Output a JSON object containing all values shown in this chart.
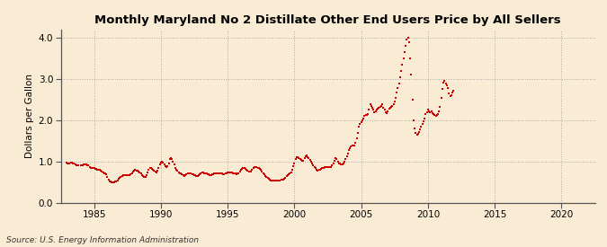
{
  "title": "Monthly Maryland No 2 Distillate Other End Users Price by All Sellers",
  "ylabel": "Dollars per Gallon",
  "source": "Source: U.S. Energy Information Administration",
  "background_color": "#faecd4",
  "plot_bg_color": "#faecd4",
  "line_color": "#cc0000",
  "xlim": [
    1982.5,
    2022.5
  ],
  "ylim": [
    0.0,
    4.2
  ],
  "xticks": [
    1985,
    1990,
    1995,
    2000,
    2005,
    2010,
    2015,
    2020
  ],
  "yticks": [
    0.0,
    1.0,
    2.0,
    3.0,
    4.0
  ],
  "data": [
    [
      1982.917,
      0.97
    ],
    [
      1983.0,
      0.96
    ],
    [
      1983.083,
      0.95
    ],
    [
      1983.167,
      0.96
    ],
    [
      1983.25,
      0.97
    ],
    [
      1983.333,
      0.97
    ],
    [
      1983.417,
      0.96
    ],
    [
      1983.5,
      0.95
    ],
    [
      1983.583,
      0.93
    ],
    [
      1983.667,
      0.91
    ],
    [
      1983.75,
      0.91
    ],
    [
      1983.833,
      0.9
    ],
    [
      1984.0,
      0.9
    ],
    [
      1984.083,
      0.9
    ],
    [
      1984.167,
      0.91
    ],
    [
      1984.25,
      0.92
    ],
    [
      1984.333,
      0.93
    ],
    [
      1984.417,
      0.92
    ],
    [
      1984.5,
      0.91
    ],
    [
      1984.583,
      0.9
    ],
    [
      1984.667,
      0.87
    ],
    [
      1984.75,
      0.85
    ],
    [
      1984.833,
      0.84
    ],
    [
      1984.917,
      0.84
    ],
    [
      1985.0,
      0.83
    ],
    [
      1985.083,
      0.82
    ],
    [
      1985.167,
      0.81
    ],
    [
      1985.25,
      0.8
    ],
    [
      1985.333,
      0.8
    ],
    [
      1985.417,
      0.79
    ],
    [
      1985.5,
      0.78
    ],
    [
      1985.583,
      0.76
    ],
    [
      1985.667,
      0.74
    ],
    [
      1985.75,
      0.72
    ],
    [
      1985.833,
      0.7
    ],
    [
      1985.917,
      0.68
    ],
    [
      1986.0,
      0.62
    ],
    [
      1986.083,
      0.55
    ],
    [
      1986.167,
      0.52
    ],
    [
      1986.25,
      0.51
    ],
    [
      1986.333,
      0.5
    ],
    [
      1986.417,
      0.5
    ],
    [
      1986.5,
      0.5
    ],
    [
      1986.583,
      0.51
    ],
    [
      1986.667,
      0.52
    ],
    [
      1986.75,
      0.54
    ],
    [
      1986.833,
      0.57
    ],
    [
      1986.917,
      0.6
    ],
    [
      1987.0,
      0.63
    ],
    [
      1987.083,
      0.65
    ],
    [
      1987.167,
      0.66
    ],
    [
      1987.25,
      0.67
    ],
    [
      1987.333,
      0.67
    ],
    [
      1987.417,
      0.67
    ],
    [
      1987.5,
      0.67
    ],
    [
      1987.583,
      0.67
    ],
    [
      1987.667,
      0.67
    ],
    [
      1987.75,
      0.68
    ],
    [
      1987.833,
      0.71
    ],
    [
      1987.917,
      0.75
    ],
    [
      1988.0,
      0.78
    ],
    [
      1988.083,
      0.79
    ],
    [
      1988.167,
      0.78
    ],
    [
      1988.25,
      0.77
    ],
    [
      1988.333,
      0.75
    ],
    [
      1988.417,
      0.73
    ],
    [
      1988.5,
      0.7
    ],
    [
      1988.583,
      0.67
    ],
    [
      1988.667,
      0.64
    ],
    [
      1988.75,
      0.62
    ],
    [
      1988.833,
      0.63
    ],
    [
      1988.917,
      0.67
    ],
    [
      1989.0,
      0.73
    ],
    [
      1989.083,
      0.79
    ],
    [
      1989.167,
      0.83
    ],
    [
      1989.25,
      0.84
    ],
    [
      1989.333,
      0.82
    ],
    [
      1989.417,
      0.8
    ],
    [
      1989.5,
      0.77
    ],
    [
      1989.583,
      0.75
    ],
    [
      1989.667,
      0.74
    ],
    [
      1989.75,
      0.77
    ],
    [
      1989.833,
      0.84
    ],
    [
      1989.917,
      0.93
    ],
    [
      1990.0,
      0.98
    ],
    [
      1990.083,
      1.0
    ],
    [
      1990.167,
      0.97
    ],
    [
      1990.25,
      0.92
    ],
    [
      1990.333,
      0.88
    ],
    [
      1990.417,
      0.87
    ],
    [
      1990.5,
      0.88
    ],
    [
      1990.583,
      0.95
    ],
    [
      1990.667,
      1.05
    ],
    [
      1990.75,
      1.07
    ],
    [
      1990.833,
      1.05
    ],
    [
      1990.917,
      1.0
    ],
    [
      1991.0,
      0.92
    ],
    [
      1991.083,
      0.85
    ],
    [
      1991.167,
      0.8
    ],
    [
      1991.25,
      0.77
    ],
    [
      1991.333,
      0.74
    ],
    [
      1991.417,
      0.72
    ],
    [
      1991.5,
      0.7
    ],
    [
      1991.583,
      0.68
    ],
    [
      1991.667,
      0.66
    ],
    [
      1991.75,
      0.65
    ],
    [
      1991.833,
      0.66
    ],
    [
      1991.917,
      0.68
    ],
    [
      1992.0,
      0.7
    ],
    [
      1992.083,
      0.71
    ],
    [
      1992.167,
      0.71
    ],
    [
      1992.25,
      0.7
    ],
    [
      1992.333,
      0.69
    ],
    [
      1992.417,
      0.68
    ],
    [
      1992.5,
      0.67
    ],
    [
      1992.583,
      0.66
    ],
    [
      1992.667,
      0.65
    ],
    [
      1992.75,
      0.65
    ],
    [
      1992.833,
      0.67
    ],
    [
      1992.917,
      0.69
    ],
    [
      1993.0,
      0.72
    ],
    [
      1993.083,
      0.73
    ],
    [
      1993.167,
      0.73
    ],
    [
      1993.25,
      0.72
    ],
    [
      1993.333,
      0.71
    ],
    [
      1993.417,
      0.7
    ],
    [
      1993.5,
      0.69
    ],
    [
      1993.583,
      0.68
    ],
    [
      1993.667,
      0.67
    ],
    [
      1993.75,
      0.67
    ],
    [
      1993.833,
      0.68
    ],
    [
      1993.917,
      0.69
    ],
    [
      1994.0,
      0.7
    ],
    [
      1994.083,
      0.71
    ],
    [
      1994.167,
      0.71
    ],
    [
      1994.25,
      0.71
    ],
    [
      1994.333,
      0.71
    ],
    [
      1994.417,
      0.71
    ],
    [
      1994.5,
      0.7
    ],
    [
      1994.583,
      0.7
    ],
    [
      1994.667,
      0.69
    ],
    [
      1994.75,
      0.69
    ],
    [
      1994.833,
      0.7
    ],
    [
      1994.917,
      0.71
    ],
    [
      1995.0,
      0.73
    ],
    [
      1995.083,
      0.74
    ],
    [
      1995.167,
      0.74
    ],
    [
      1995.25,
      0.74
    ],
    [
      1995.333,
      0.73
    ],
    [
      1995.417,
      0.72
    ],
    [
      1995.5,
      0.71
    ],
    [
      1995.583,
      0.7
    ],
    [
      1995.667,
      0.69
    ],
    [
      1995.75,
      0.7
    ],
    [
      1995.833,
      0.72
    ],
    [
      1995.917,
      0.75
    ],
    [
      1996.0,
      0.79
    ],
    [
      1996.083,
      0.82
    ],
    [
      1996.167,
      0.84
    ],
    [
      1996.25,
      0.83
    ],
    [
      1996.333,
      0.81
    ],
    [
      1996.417,
      0.79
    ],
    [
      1996.5,
      0.77
    ],
    [
      1996.583,
      0.76
    ],
    [
      1996.667,
      0.75
    ],
    [
      1996.75,
      0.76
    ],
    [
      1996.833,
      0.79
    ],
    [
      1996.917,
      0.83
    ],
    [
      1997.0,
      0.86
    ],
    [
      1997.083,
      0.87
    ],
    [
      1997.167,
      0.86
    ],
    [
      1997.25,
      0.85
    ],
    [
      1997.333,
      0.83
    ],
    [
      1997.417,
      0.81
    ],
    [
      1997.5,
      0.79
    ],
    [
      1997.583,
      0.76
    ],
    [
      1997.667,
      0.72
    ],
    [
      1997.75,
      0.68
    ],
    [
      1997.833,
      0.65
    ],
    [
      1997.917,
      0.62
    ],
    [
      1998.0,
      0.59
    ],
    [
      1998.083,
      0.57
    ],
    [
      1998.167,
      0.55
    ],
    [
      1998.25,
      0.54
    ],
    [
      1998.333,
      0.53
    ],
    [
      1998.417,
      0.53
    ],
    [
      1998.5,
      0.53
    ],
    [
      1998.583,
      0.53
    ],
    [
      1998.667,
      0.53
    ],
    [
      1998.75,
      0.53
    ],
    [
      1998.833,
      0.54
    ],
    [
      1998.917,
      0.54
    ],
    [
      1999.0,
      0.55
    ],
    [
      1999.083,
      0.55
    ],
    [
      1999.167,
      0.56
    ],
    [
      1999.25,
      0.58
    ],
    [
      1999.333,
      0.61
    ],
    [
      1999.417,
      0.64
    ],
    [
      1999.5,
      0.67
    ],
    [
      1999.583,
      0.69
    ],
    [
      1999.667,
      0.71
    ],
    [
      1999.75,
      0.74
    ],
    [
      1999.833,
      0.8
    ],
    [
      1999.917,
      0.88
    ],
    [
      2000.0,
      0.96
    ],
    [
      2000.083,
      1.05
    ],
    [
      2000.167,
      1.1
    ],
    [
      2000.25,
      1.11
    ],
    [
      2000.333,
      1.09
    ],
    [
      2000.417,
      1.06
    ],
    [
      2000.5,
      1.03
    ],
    [
      2000.583,
      1.02
    ],
    [
      2000.667,
      1.02
    ],
    [
      2000.75,
      1.07
    ],
    [
      2000.833,
      1.12
    ],
    [
      2000.917,
      1.14
    ],
    [
      2001.0,
      1.11
    ],
    [
      2001.083,
      1.07
    ],
    [
      2001.167,
      1.03
    ],
    [
      2001.25,
      0.99
    ],
    [
      2001.333,
      0.95
    ],
    [
      2001.417,
      0.91
    ],
    [
      2001.5,
      0.87
    ],
    [
      2001.583,
      0.83
    ],
    [
      2001.667,
      0.8
    ],
    [
      2001.75,
      0.78
    ],
    [
      2001.833,
      0.79
    ],
    [
      2001.917,
      0.8
    ],
    [
      2002.0,
      0.82
    ],
    [
      2002.083,
      0.84
    ],
    [
      2002.167,
      0.85
    ],
    [
      2002.25,
      0.86
    ],
    [
      2002.333,
      0.87
    ],
    [
      2002.417,
      0.87
    ],
    [
      2002.5,
      0.87
    ],
    [
      2002.583,
      0.87
    ],
    [
      2002.667,
      0.86
    ],
    [
      2002.75,
      0.87
    ],
    [
      2002.833,
      0.9
    ],
    [
      2002.917,
      0.94
    ],
    [
      2003.0,
      1.01
    ],
    [
      2003.083,
      1.08
    ],
    [
      2003.167,
      1.05
    ],
    [
      2003.25,
      0.99
    ],
    [
      2003.333,
      0.96
    ],
    [
      2003.417,
      0.94
    ],
    [
      2003.5,
      0.92
    ],
    [
      2003.583,
      0.92
    ],
    [
      2003.667,
      0.95
    ],
    [
      2003.75,
      1.0
    ],
    [
      2003.833,
      1.06
    ],
    [
      2003.917,
      1.13
    ],
    [
      2004.0,
      1.2
    ],
    [
      2004.083,
      1.27
    ],
    [
      2004.167,
      1.33
    ],
    [
      2004.25,
      1.37
    ],
    [
      2004.333,
      1.39
    ],
    [
      2004.417,
      1.39
    ],
    [
      2004.5,
      1.38
    ],
    [
      2004.583,
      1.45
    ],
    [
      2004.667,
      1.55
    ],
    [
      2004.75,
      1.7
    ],
    [
      2004.833,
      1.85
    ],
    [
      2004.917,
      1.9
    ],
    [
      2005.0,
      1.95
    ],
    [
      2005.083,
      2.0
    ],
    [
      2005.167,
      2.05
    ],
    [
      2005.25,
      2.1
    ],
    [
      2005.333,
      2.12
    ],
    [
      2005.417,
      2.12
    ],
    [
      2005.5,
      2.15
    ],
    [
      2005.583,
      2.25
    ],
    [
      2005.667,
      2.4
    ],
    [
      2005.75,
      2.35
    ],
    [
      2005.833,
      2.3
    ],
    [
      2005.917,
      2.25
    ],
    [
      2006.0,
      2.2
    ],
    [
      2006.083,
      2.22
    ],
    [
      2006.167,
      2.25
    ],
    [
      2006.25,
      2.28
    ],
    [
      2006.333,
      2.3
    ],
    [
      2006.417,
      2.32
    ],
    [
      2006.5,
      2.35
    ],
    [
      2006.583,
      2.38
    ],
    [
      2006.667,
      2.3
    ],
    [
      2006.75,
      2.25
    ],
    [
      2006.833,
      2.2
    ],
    [
      2006.917,
      2.18
    ],
    [
      2007.0,
      2.22
    ],
    [
      2007.083,
      2.28
    ],
    [
      2007.167,
      2.3
    ],
    [
      2007.25,
      2.32
    ],
    [
      2007.333,
      2.35
    ],
    [
      2007.417,
      2.38
    ],
    [
      2007.5,
      2.45
    ],
    [
      2007.583,
      2.55
    ],
    [
      2007.667,
      2.68
    ],
    [
      2007.75,
      2.78
    ],
    [
      2007.833,
      2.9
    ],
    [
      2007.917,
      3.05
    ],
    [
      2008.0,
      3.2
    ],
    [
      2008.083,
      3.35
    ],
    [
      2008.167,
      3.5
    ],
    [
      2008.25,
      3.65
    ],
    [
      2008.333,
      3.8
    ],
    [
      2008.417,
      3.95
    ],
    [
      2008.5,
      4.0
    ],
    [
      2008.583,
      3.9
    ],
    [
      2008.667,
      3.5
    ],
    [
      2008.75,
      3.1
    ],
    [
      2008.833,
      2.5
    ],
    [
      2008.917,
      2.0
    ],
    [
      2009.0,
      1.8
    ],
    [
      2009.083,
      1.7
    ],
    [
      2009.167,
      1.65
    ],
    [
      2009.25,
      1.68
    ],
    [
      2009.333,
      1.72
    ],
    [
      2009.417,
      1.78
    ],
    [
      2009.5,
      1.85
    ],
    [
      2009.583,
      1.92
    ],
    [
      2009.667,
      1.98
    ],
    [
      2009.75,
      2.05
    ],
    [
      2009.833,
      2.15
    ],
    [
      2009.917,
      2.2
    ],
    [
      2010.0,
      2.25
    ],
    [
      2010.083,
      2.22
    ],
    [
      2010.167,
      2.2
    ],
    [
      2010.25,
      2.22
    ],
    [
      2010.333,
      2.18
    ],
    [
      2010.417,
      2.15
    ],
    [
      2010.5,
      2.12
    ],
    [
      2010.583,
      2.1
    ],
    [
      2010.667,
      2.12
    ],
    [
      2010.75,
      2.15
    ],
    [
      2010.833,
      2.22
    ],
    [
      2010.917,
      2.32
    ],
    [
      2011.0,
      2.55
    ],
    [
      2011.083,
      2.75
    ],
    [
      2011.167,
      2.92
    ],
    [
      2011.25,
      2.95
    ],
    [
      2011.333,
      2.9
    ],
    [
      2011.417,
      2.85
    ],
    [
      2011.5,
      2.78
    ],
    [
      2011.583,
      2.65
    ],
    [
      2011.667,
      2.58
    ],
    [
      2011.75,
      2.6
    ],
    [
      2011.833,
      2.68
    ],
    [
      2011.917,
      2.72
    ]
  ]
}
